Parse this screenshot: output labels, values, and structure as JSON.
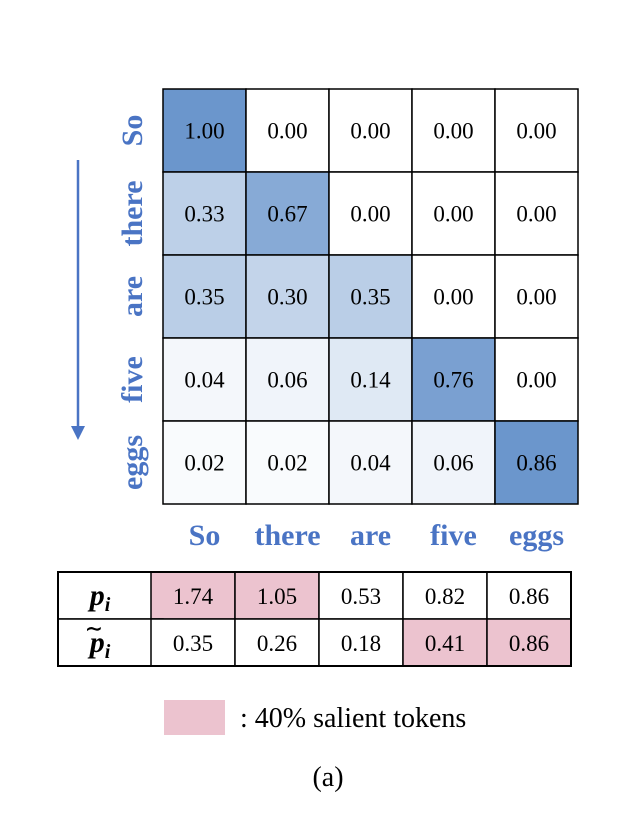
{
  "tokens": [
    "So",
    "there",
    "are",
    "five",
    "eggs"
  ],
  "matrix": [
    [
      "1.00",
      "0.00",
      "0.00",
      "0.00",
      "0.00"
    ],
    [
      "0.33",
      "0.67",
      "0.00",
      "0.00",
      "0.00"
    ],
    [
      "0.35",
      "0.30",
      "0.35",
      "0.00",
      "0.00"
    ],
    [
      "0.04",
      "0.06",
      "0.14",
      "0.76",
      "0.00"
    ],
    [
      "0.02",
      "0.02",
      "0.04",
      "0.06",
      "0.86"
    ]
  ],
  "score_table": {
    "rows": [
      {
        "symbol": "p",
        "sub": "i",
        "tilde": false,
        "values": [
          "1.74",
          "1.05",
          "0.53",
          "0.82",
          "0.86"
        ],
        "salient": [
          true,
          true,
          false,
          false,
          false
        ]
      },
      {
        "symbol": "p",
        "sub": "i",
        "tilde": true,
        "values": [
          "0.35",
          "0.26",
          "0.18",
          "0.41",
          "0.86"
        ],
        "salient": [
          false,
          false,
          false,
          true,
          true
        ]
      }
    ]
  },
  "legend": {
    "text": ": 40% salient tokens",
    "color": "#ecc3cf"
  },
  "caption": "(a)",
  "colors": {
    "token": "#4a74c4",
    "arrow": "#4a74c4",
    "salient": "#ecc3cf",
    "heat_max": "#6b96cc",
    "heat_min": "#ffffff"
  }
}
